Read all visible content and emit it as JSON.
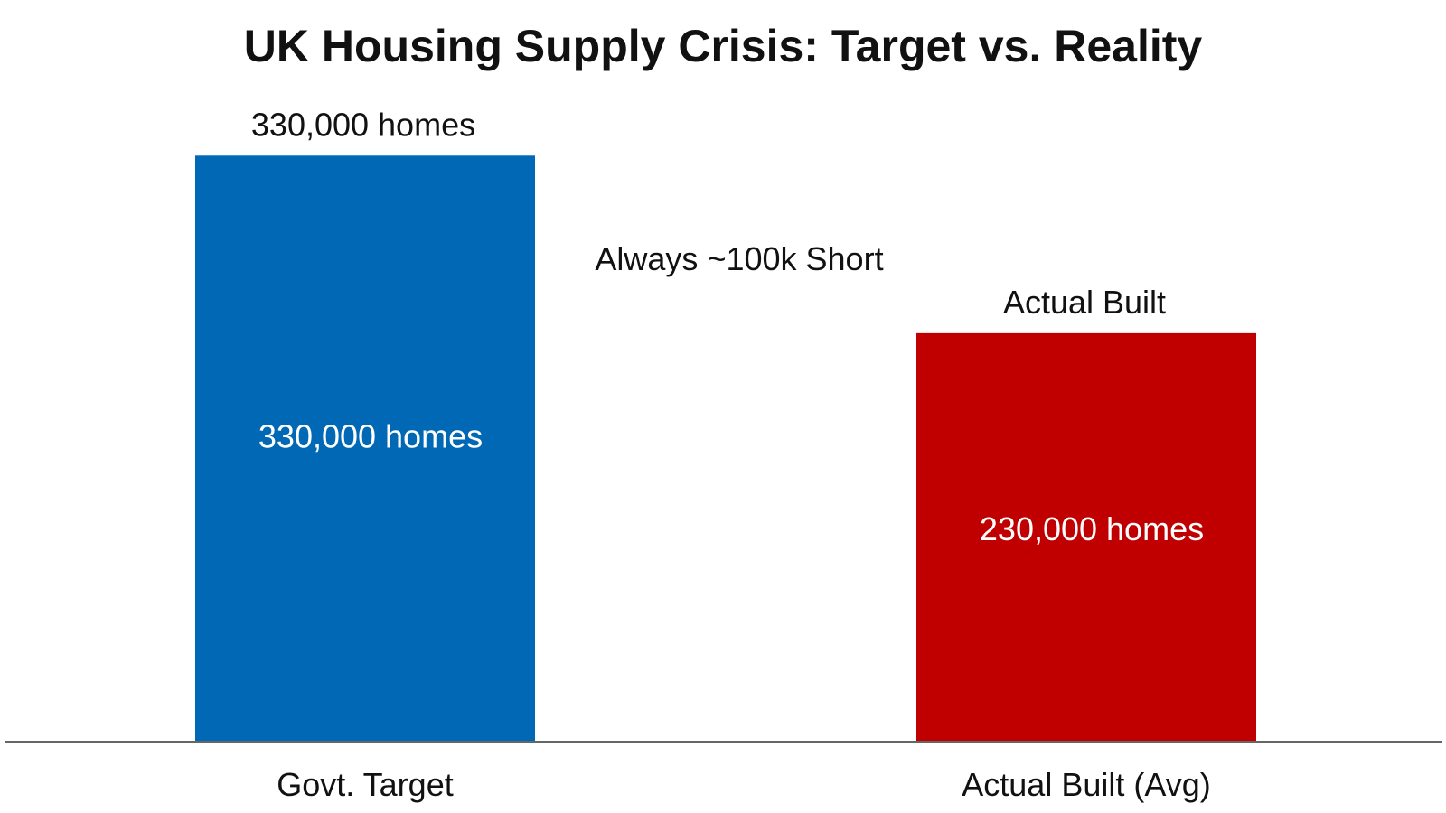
{
  "chart_data": {
    "type": "bar",
    "title": "UK Housing Supply Crisis: Target vs. Reality",
    "xlabel": "",
    "ylabel": "",
    "grid": false,
    "categories": [
      "Govt. Target",
      "Actual Built (Avg)"
    ],
    "values": [
      330000,
      230000
    ],
    "ylim": [
      0,
      380000
    ],
    "colors": [
      "#0068b5",
      "#c00000"
    ],
    "top_labels": [
      "330,000 homes",
      "Actual Built"
    ],
    "inside_labels": [
      "330,000 homes",
      "230,000 homes"
    ],
    "annotation": "Always ~100k Short"
  }
}
